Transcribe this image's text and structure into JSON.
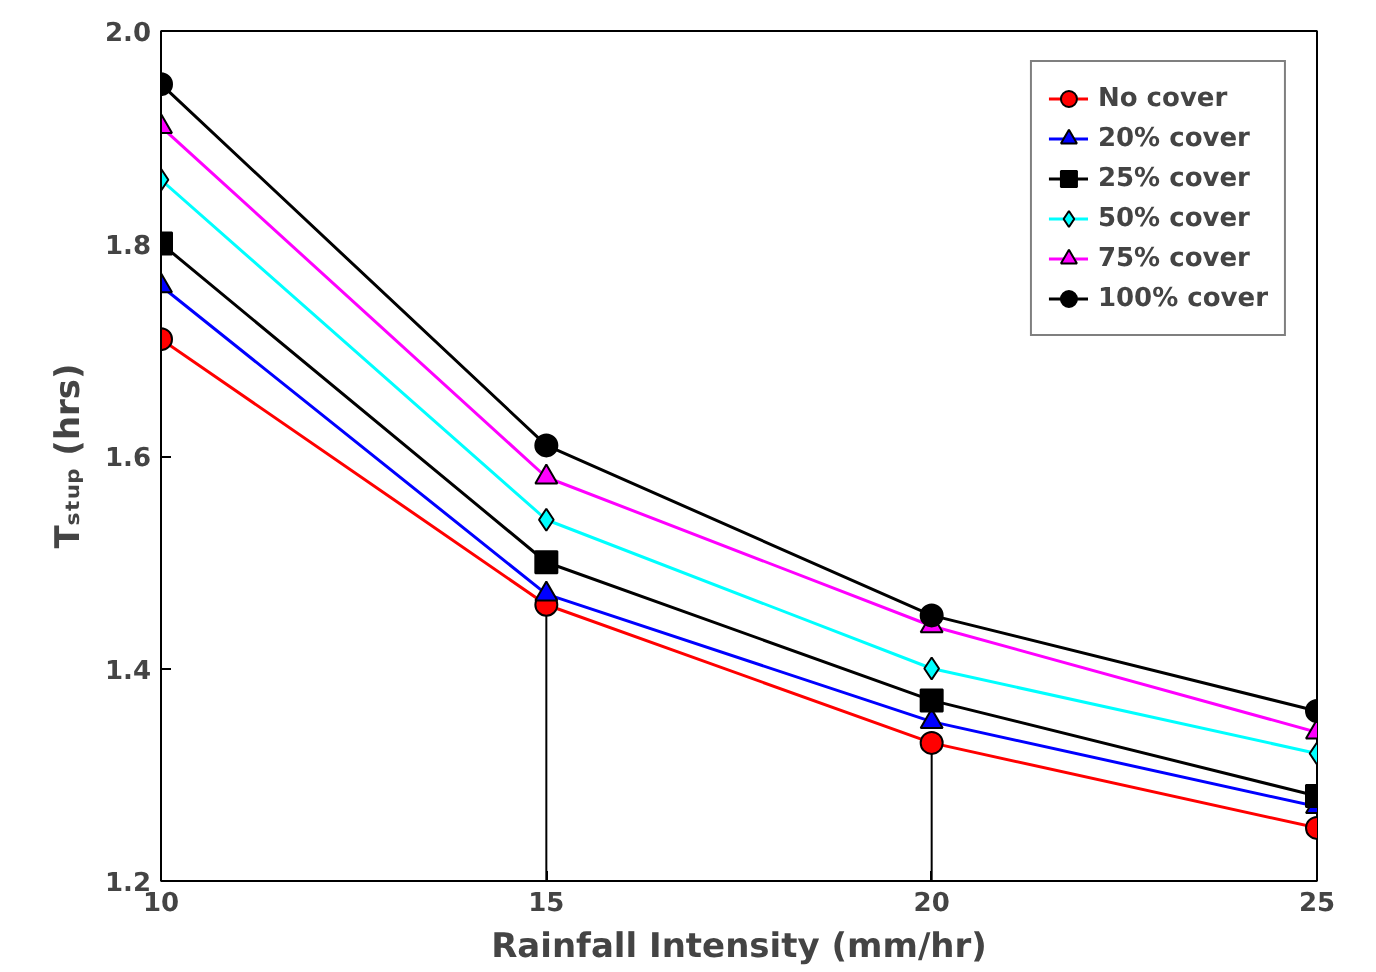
{
  "chart_data": {
    "type": "line",
    "xlabel": "Rainfall Intensity (mm/hr)",
    "ylabel": "Tₛₜᵤₚ (hrs)",
    "x": [
      10,
      15,
      20,
      25
    ],
    "xlim": [
      10,
      25
    ],
    "xticks": [
      10,
      15,
      20,
      25
    ],
    "ylim": [
      1.2,
      2.0
    ],
    "yticks": [
      {
        "value": 1.2,
        "label": "1.2"
      },
      {
        "value": 1.4,
        "label": "1.4"
      },
      {
        "value": 1.6,
        "label": "1.6"
      },
      {
        "value": 1.8,
        "label": "1.8"
      },
      {
        "value": 2.0,
        "label": "2.0"
      }
    ],
    "grid": false,
    "legend": "top right",
    "line_style": "solid",
    "series": [
      {
        "name": "No cover",
        "color": "#ff0000",
        "marker": "circle",
        "values": [
          1.71,
          1.46,
          1.33,
          1.25
        ],
        "errors": [
          null,
          [
            1.2,
            1.46
          ],
          [
            1.2,
            1.33
          ],
          null
        ]
      },
      {
        "name": "20% cover",
        "color": "#0000ff",
        "marker": "triangle",
        "values": [
          1.76,
          1.47,
          1.35,
          1.27
        ]
      },
      {
        "name": "25% cover",
        "color": "#000000",
        "marker": "square",
        "values": [
          1.8,
          1.5,
          1.37,
          1.28
        ]
      },
      {
        "name": "50% cover",
        "color": "#00ffff",
        "marker": "diamond",
        "values": [
          1.86,
          1.54,
          1.4,
          1.32
        ]
      },
      {
        "name": "75% cover",
        "color": "#ff00ff",
        "marker": "triangle",
        "values": [
          1.91,
          1.58,
          1.44,
          1.34
        ]
      },
      {
        "name": "100% cover",
        "color": "#000000",
        "marker": "circle",
        "values": [
          1.95,
          1.61,
          1.45,
          1.36
        ]
      }
    ]
  }
}
